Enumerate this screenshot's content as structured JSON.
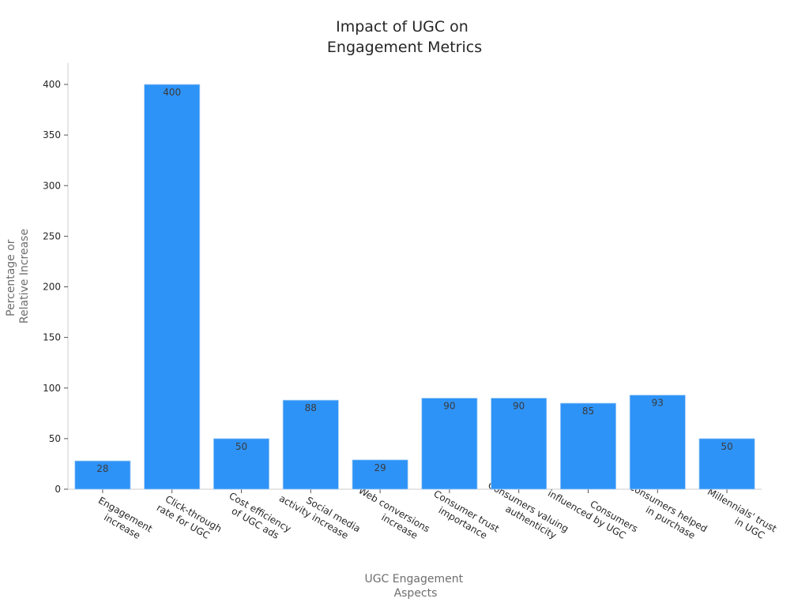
{
  "chart_data": {
    "type": "bar",
    "title": [
      "Impact of UGC on",
      "Engagement Metrics"
    ],
    "xlabel": [
      "UGC Engagement",
      "Aspects"
    ],
    "ylabel": [
      "Percentage or",
      "Relative Increase"
    ],
    "categories": [
      [
        "Engagement",
        "increase"
      ],
      [
        "Click-through",
        "rate for UGC"
      ],
      [
        "Cost efficiency",
        "of UGC ads"
      ],
      [
        "Social media",
        "activity increase"
      ],
      [
        "Web conversions",
        "increase"
      ],
      [
        "Consumer trust",
        "importance"
      ],
      [
        "Consumers valuing",
        "authenticity"
      ],
      [
        "Consumers",
        "influenced by UGC"
      ],
      [
        "Consumers helped",
        "in purchase"
      ],
      [
        "Millennials' trust",
        "in UGC"
      ]
    ],
    "values": [
      28,
      400,
      50,
      88,
      29,
      90,
      90,
      85,
      93,
      50
    ],
    "yticks": [
      0,
      50,
      100,
      150,
      200,
      250,
      300,
      350,
      400
    ],
    "ylim": [
      0,
      420
    ],
    "bar_color": "#2e93f7",
    "grid": false,
    "legend": "none"
  }
}
